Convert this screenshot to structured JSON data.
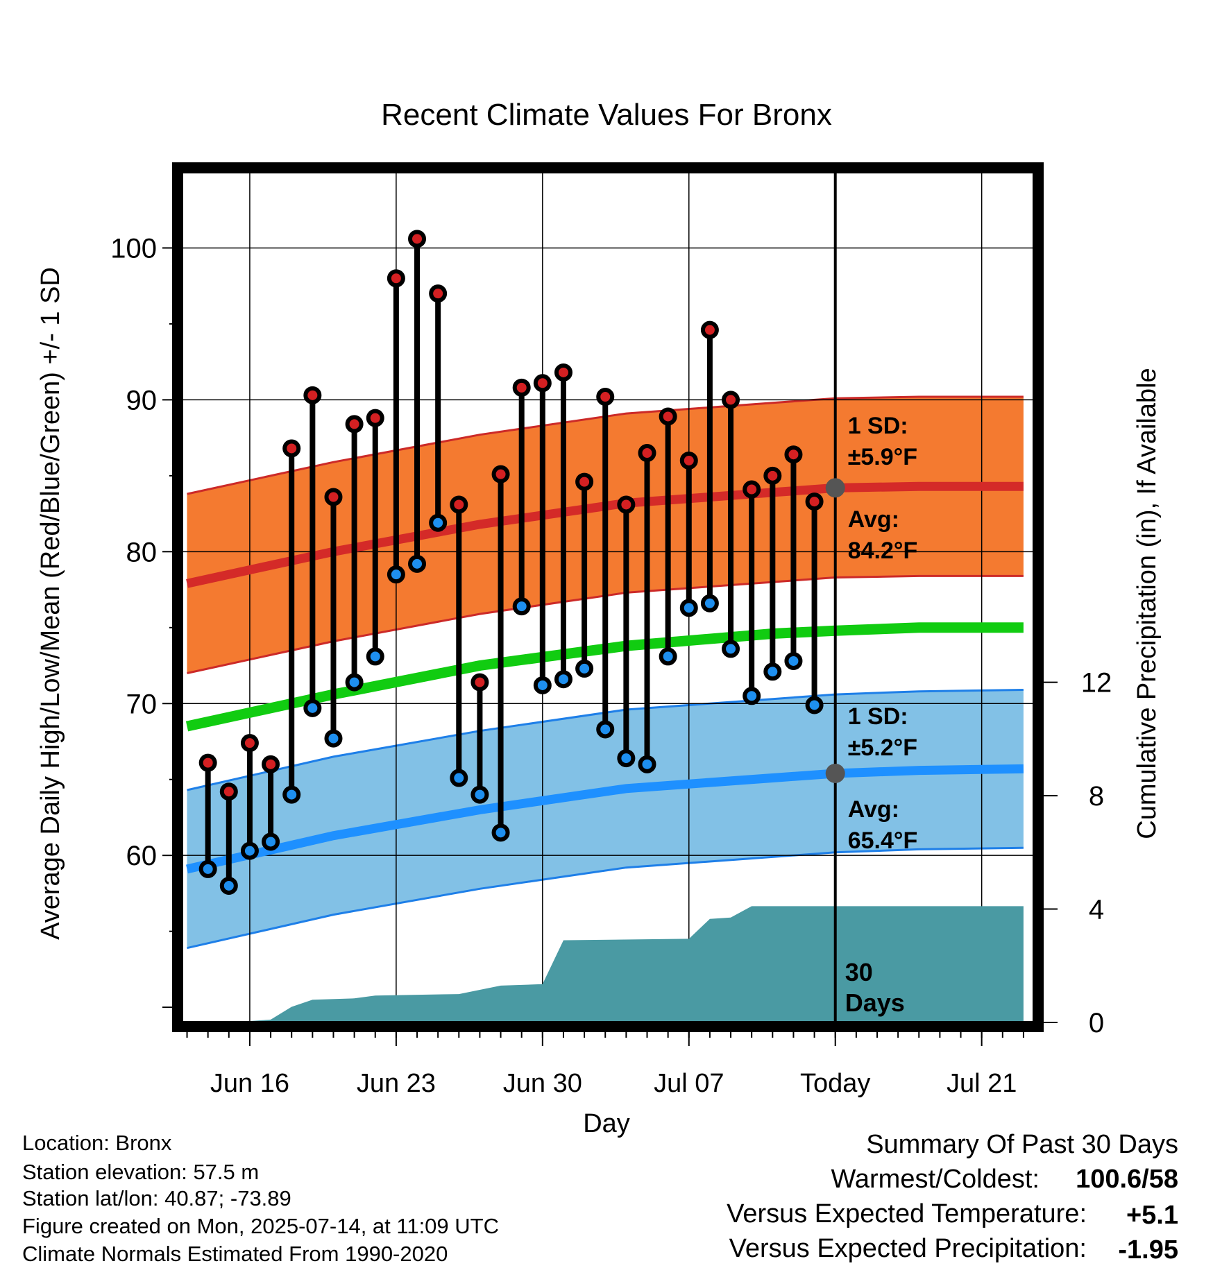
{
  "chart_data": {
    "type": "line",
    "title": "Recent Climate Values For Bronx",
    "xlabel": "Day",
    "ylabel": "Average Daily High/Low/Mean (Red/Blue/Green) +/- 1 SD",
    "y2label": "Cumulative Precipitation (in), If Available",
    "ylim": [
      49,
      105
    ],
    "y2lim": [
      0,
      30
    ],
    "x_tick_labels": [
      "Jun 16",
      "Jun 23",
      "Jun 30",
      "Jul 07",
      "Today",
      "Jul 21"
    ],
    "y_tick_labels": [
      "60",
      "70",
      "80",
      "90",
      "100"
    ],
    "y2_tick_labels": [
      "0",
      "4",
      "8",
      "12"
    ],
    "y2_ticks": [
      0,
      4,
      8,
      12
    ],
    "y_ticks": [
      60,
      70,
      80,
      90,
      100
    ],
    "x_ticks": [
      "2025-06-16",
      "2025-06-23",
      "2025-06-30",
      "2025-07-07",
      "2025-07-14",
      "2025-07-21"
    ],
    "xlim": [
      "2025-06-12T18:00",
      "2025-07-23T12:00"
    ],
    "today": "2025-07-14",
    "grid": true,
    "observations": {
      "dates": [
        "2025-06-14",
        "2025-06-15",
        "2025-06-16",
        "2025-06-17",
        "2025-06-18",
        "2025-06-19",
        "2025-06-20",
        "2025-06-21",
        "2025-06-22",
        "2025-06-23",
        "2025-06-24",
        "2025-06-25",
        "2025-06-26",
        "2025-06-27",
        "2025-06-28",
        "2025-06-29",
        "2025-06-30",
        "2025-07-01",
        "2025-07-02",
        "2025-07-03",
        "2025-07-04",
        "2025-07-05",
        "2025-07-06",
        "2025-07-07",
        "2025-07-08",
        "2025-07-09",
        "2025-07-10",
        "2025-07-11",
        "2025-07-12",
        "2025-07-13"
      ],
      "high": [
        66.1,
        64.2,
        67.4,
        66.0,
        86.8,
        90.3,
        83.6,
        88.4,
        88.8,
        98.0,
        100.6,
        97.0,
        83.1,
        71.4,
        85.1,
        90.8,
        91.1,
        91.8,
        84.6,
        90.2,
        83.1,
        86.5,
        88.9,
        86.0,
        94.6,
        90.0,
        84.1,
        85.0,
        86.4,
        83.3
      ],
      "low": [
        59.1,
        58.0,
        60.3,
        60.9,
        64.0,
        69.7,
        67.7,
        71.4,
        73.1,
        78.5,
        79.2,
        81.9,
        65.1,
        64.0,
        61.5,
        76.4,
        71.2,
        71.6,
        72.3,
        68.3,
        66.4,
        66.0,
        73.1,
        76.3,
        76.6,
        73.6,
        70.5,
        72.1,
        72.8,
        69.9
      ]
    },
    "normals": {
      "dates": [
        "2025-06-13",
        "2025-06-20",
        "2025-06-27",
        "2025-07-04",
        "2025-07-11",
        "2025-07-14",
        "2025-07-18",
        "2025-07-23"
      ],
      "avg_high": [
        77.9,
        80.0,
        81.8,
        83.2,
        83.9,
        84.2,
        84.3,
        84.3
      ],
      "avg_low": [
        59.1,
        61.3,
        63.0,
        64.4,
        65.1,
        65.4,
        65.6,
        65.7
      ],
      "avg_mean": [
        68.5,
        70.6,
        72.5,
        73.8,
        74.6,
        74.8,
        75.0,
        75.0
      ],
      "high_sd": 5.9,
      "low_sd": 5.2
    },
    "precipitation": {
      "dates": [
        "2025-06-13",
        "2025-06-16",
        "2025-06-17",
        "2025-06-18",
        "2025-06-19",
        "2025-06-21",
        "2025-06-22",
        "2025-06-26",
        "2025-06-27",
        "2025-06-28",
        "2025-06-30",
        "2025-07-01",
        "2025-07-07",
        "2025-07-08",
        "2025-07-09",
        "2025-07-10",
        "2025-07-23"
      ],
      "cumulative": [
        0,
        0.05,
        0.1,
        0.55,
        0.8,
        0.85,
        0.95,
        1.0,
        1.15,
        1.3,
        1.35,
        2.9,
        2.95,
        3.65,
        3.7,
        4.1,
        4.1
      ]
    },
    "annotations": {
      "high_sd_label": "1 SD:",
      "high_sd_value": "±5.9°F",
      "high_avg_label": "Avg:",
      "high_avg_value": "84.2°F",
      "low_sd_label": "1 SD:",
      "low_sd_value": "±5.2°F",
      "low_avg_label": "Avg:",
      "low_avg_value": "65.4°F",
      "window_label_1": "30",
      "window_label_2": "Days"
    },
    "colors": {
      "high_band": "#f47a30",
      "high_line": "#d42a28",
      "high_band_edge": "#cc2a28",
      "low_band": "#82c1e6",
      "low_line": "#1e90ff",
      "low_band_edge": "#1e7fe8",
      "mean_line": "#11cc11",
      "precip": "#4a9aa3",
      "high_marker": "#d42022",
      "low_marker": "#1e8fef",
      "today_marker": "#555555",
      "annotation": "#555555"
    }
  },
  "info": {
    "location": "Location: Bronx",
    "elevation": "Station elevation: 57.5 m",
    "latlon": "Station lat/lon: 40.87; -73.89",
    "created": "Figure created on Mon, 2025-07-14, at 11:09 UTC",
    "normals": "Climate Normals Estimated From 1990-2020"
  },
  "summary": {
    "title": "Summary Of Past 30 Days",
    "warmest_label": "Warmest/Coldest:",
    "warmest_value": "100.6/58",
    "temp_label": "Versus Expected Temperature:",
    "temp_value": "+5.1",
    "temp_color": "#d42a28",
    "precip_label": "Versus Expected Precipitation:",
    "precip_value": "-1.95",
    "precip_color": "#a0522d"
  }
}
